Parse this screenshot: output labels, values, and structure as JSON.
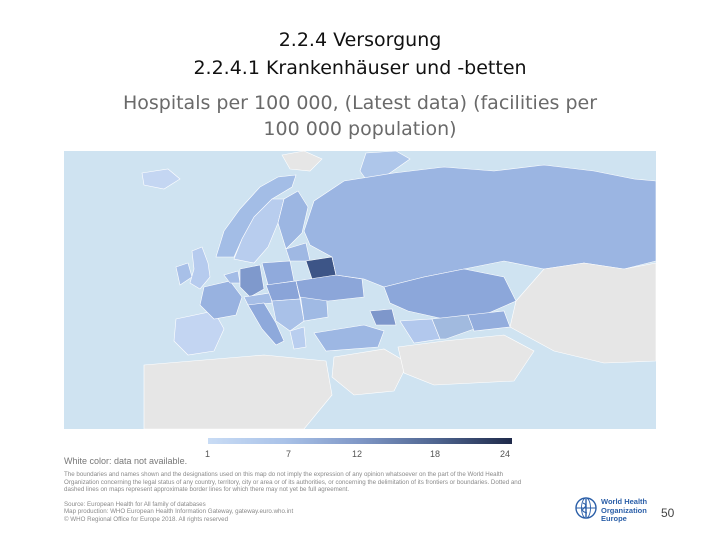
{
  "slide": {
    "heading": "2.2.4 Versorgung",
    "subheading": "2.2.4.1 Krankenhäuser und -betten",
    "page_number": "50"
  },
  "map": {
    "title_line1": "Hospitals per 100 000, (Latest data) (facilities per",
    "title_line2": "100 000 population)",
    "sea_color": "#cfe3f1",
    "no_data_color": "#e6e6e6"
  },
  "legend": {
    "ticks": [
      "1",
      "7",
      "12",
      "18",
      "24"
    ],
    "min": 1,
    "max": 24,
    "white_note": "White color: data not available."
  },
  "footer": {
    "disclaimer_lines": [
      "The boundaries and names shown and the designations used on this map do not imply the expression of any opinion whatsoever on the part of the World Health",
      "Organization concerning the legal status of any country, territory, city or area or of its authorities, or concerning the delimitation of its frontiers or boundaries. Dotted and",
      "dashed lines on maps represent approximate border lines for which there may not yet be full agreement."
    ],
    "source_lines": [
      "Source: European Health for All family of databases",
      "Map production: WHO European Health Information Gateway, gateway.euro.who.int",
      "© WHO Regional Office for Europe 2018. All rights reserved"
    ]
  },
  "logo": {
    "line1": "World Health",
    "line2": "Organization",
    "line3": "Europe"
  }
}
